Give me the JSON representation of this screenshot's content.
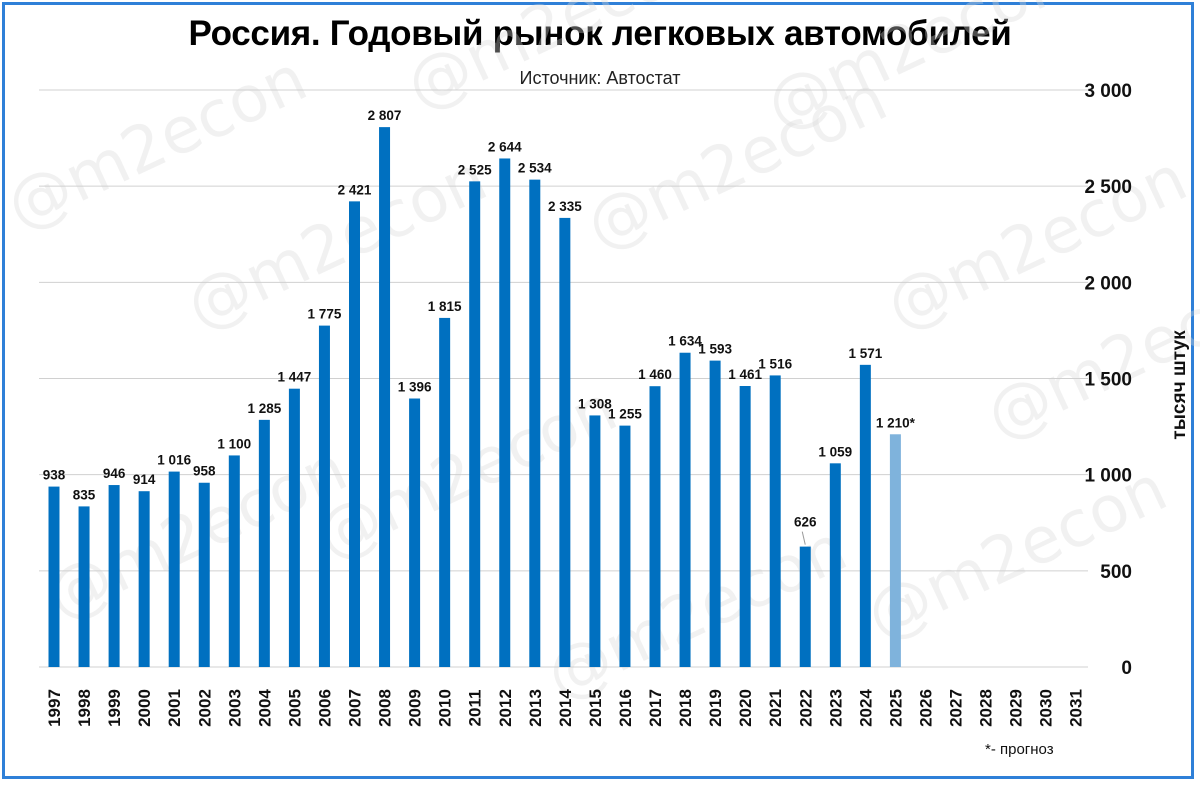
{
  "chart_data": {
    "type": "bar",
    "title": "Россия. Годовый рынок легковых автомобилей",
    "subtitle": "Источник: Автостат",
    "ylabel": "тысяч штук",
    "ylim": [
      0,
      3000
    ],
    "yticks": [
      0,
      500,
      1000,
      1500,
      2000,
      2500,
      3000
    ],
    "ytick_labels": [
      "0",
      "500",
      "1 000",
      "1 500",
      "2 000",
      "2 500",
      "3 000"
    ],
    "grid": true,
    "categories": [
      "1997",
      "1998",
      "1999",
      "2000",
      "2001",
      "2002",
      "2003",
      "2004",
      "2005",
      "2006",
      "2007",
      "2008",
      "2009",
      "2010",
      "2011",
      "2012",
      "2013",
      "2014",
      "2015",
      "2016",
      "2017",
      "2018",
      "2019",
      "2020",
      "2021",
      "2022",
      "2023",
      "2024",
      "2025",
      "2026",
      "2027",
      "2028",
      "2029",
      "2030",
      "2031"
    ],
    "values": [
      938,
      835,
      946,
      914,
      1016,
      958,
      1100,
      1285,
      1447,
      1775,
      2421,
      2807,
      1396,
      1815,
      2525,
      2644,
      2534,
      2335,
      1308,
      1255,
      1460,
      1634,
      1593,
      1461,
      1516,
      626,
      1059,
      1571,
      1210,
      null,
      null,
      null,
      null,
      null,
      null
    ],
    "data_labels": [
      "938",
      "835",
      "946",
      "914",
      "1 016",
      "958",
      "1 100",
      "1 285",
      "1 447",
      "1 775",
      "2 421",
      "2 807",
      "1 396",
      "1 815",
      "2 525",
      "2 644",
      "2 534",
      "2 335",
      "1 308",
      "1 255",
      "1 460",
      "1 634",
      "1 593",
      "1 461",
      "1 516",
      "626",
      "1 059",
      "1 571",
      "1 210*",
      "",
      "",
      "",
      "",
      "",
      ""
    ],
    "forecast_index": 28,
    "colors": {
      "bar": "#0070c0",
      "forecast": "#7fb3dc",
      "grid": "#d0d0d0"
    },
    "footnote": "*- прогноз",
    "watermark": "@m2econ"
  }
}
